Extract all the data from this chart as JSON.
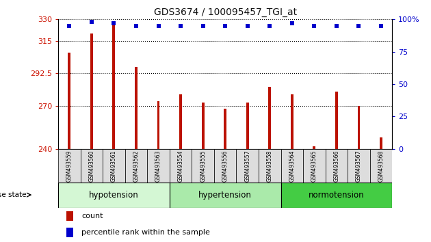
{
  "title": "GDS3674 / 100095457_TGI_at",
  "categories": [
    "GSM493559",
    "GSM493560",
    "GSM493561",
    "GSM493562",
    "GSM493563",
    "GSM493554",
    "GSM493555",
    "GSM493556",
    "GSM493557",
    "GSM493558",
    "GSM493564",
    "GSM493565",
    "GSM493566",
    "GSM493567",
    "GSM493568"
  ],
  "counts": [
    307,
    320,
    328,
    297,
    273,
    278,
    272,
    268,
    272,
    283,
    278,
    242,
    280,
    270,
    248
  ],
  "percentiles": [
    95,
    98,
    97,
    95,
    95,
    95,
    95,
    95,
    95,
    95,
    97,
    95,
    95,
    95,
    95
  ],
  "groups": [
    {
      "label": "hypotension",
      "start": 0,
      "end": 5,
      "color": "#d4f7d4"
    },
    {
      "label": "hypertension",
      "start": 5,
      "end": 10,
      "color": "#aaeaaa"
    },
    {
      "label": "normotension",
      "start": 10,
      "end": 15,
      "color": "#44cc44"
    }
  ],
  "ylim_left": [
    240,
    330
  ],
  "ylim_right": [
    0,
    100
  ],
  "yticks_left": [
    240,
    270,
    292.5,
    315,
    330
  ],
  "ytick_labels_left": [
    "240",
    "270",
    "292.5",
    "315",
    "330"
  ],
  "yticks_right": [
    0,
    25,
    50,
    75,
    100
  ],
  "ytick_labels_right": [
    "0",
    "25",
    "50",
    "75",
    "100%"
  ],
  "bar_color": "#bb1100",
  "dot_color": "#0000cc",
  "bar_width": 0.12,
  "background_color": "#ffffff",
  "grid_color": "#000000",
  "xlabel_color": "#cc1100",
  "ylabel_right_color": "#0000cc",
  "disease_label": "disease state",
  "legend_count_label": "count",
  "legend_percentile_label": "percentile rank within the sample",
  "xtick_bg_color": "#dddddd"
}
